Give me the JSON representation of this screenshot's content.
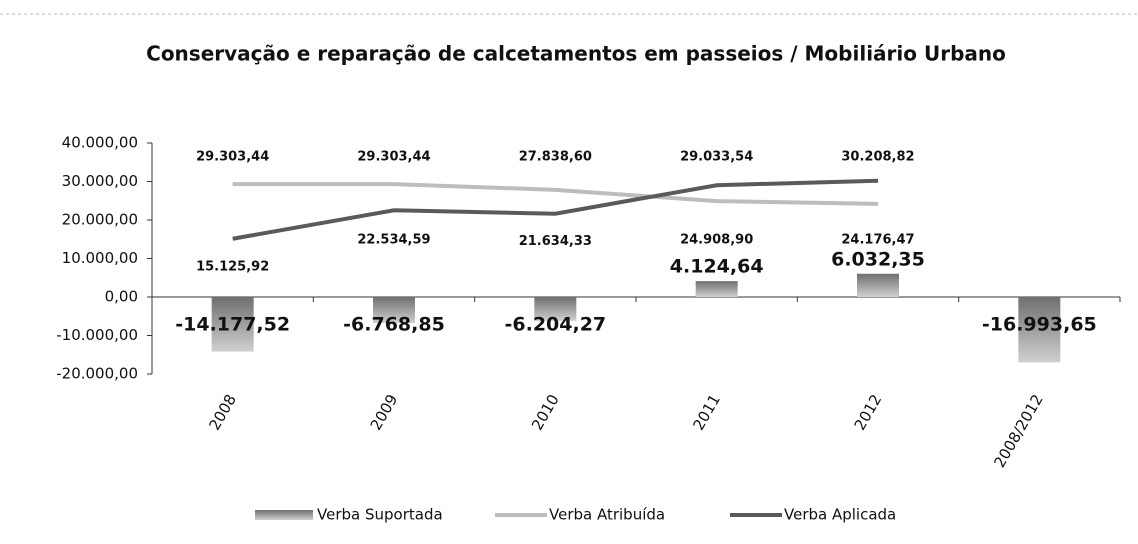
{
  "chart_data": {
    "type": "bar",
    "title": "Conservação e reparação de calcetamentos em passeios / Mobiliário Urbano",
    "categories": [
      "2008",
      "2009",
      "2010",
      "2011",
      "2012",
      "2008/2012"
    ],
    "series": [
      {
        "name": "Verba Suportada",
        "type": "bar",
        "color": "#9a9a9a",
        "values": [
          -14177.52,
          -6768.85,
          -6204.27,
          4124.64,
          6032.35,
          -16993.65
        ],
        "value_labels": [
          "-14.177,52",
          "-6.768,85",
          "-6.204,27",
          "4.124,64",
          "6.032,35",
          "-16.993,65"
        ]
      },
      {
        "name": "Verba Atribuída",
        "type": "line",
        "color": "#bdbdbd",
        "values": [
          29303.44,
          29303.44,
          27838.6,
          24908.9,
          24176.47,
          null
        ],
        "value_labels": [
          "29.303,44",
          "29.303,44",
          "27.838,60",
          "24.908,90",
          "24.176,47",
          null
        ]
      },
      {
        "name": "Verba Aplicada",
        "type": "line",
        "color": "#5a5a5a",
        "values": [
          15125.92,
          22534.59,
          21634.33,
          29033.54,
          30208.82,
          null
        ],
        "value_labels": [
          "15.125,92",
          "22.534,59",
          "21.634,33",
          "29.033,54",
          "30.208,82",
          null
        ]
      }
    ],
    "ylim": [
      -20000,
      40000
    ],
    "yticks": [
      {
        "value": -20000,
        "label": "-20.000,00"
      },
      {
        "value": -10000,
        "label": "-10.000,00"
      },
      {
        "value": 0,
        "label": "0,00"
      },
      {
        "value": 10000,
        "label": "10.000,00"
      },
      {
        "value": 20000,
        "label": "20.000,00"
      },
      {
        "value": 30000,
        "label": "30.000,00"
      },
      {
        "value": 40000,
        "label": "40.000,00"
      }
    ],
    "legend": "bottom"
  }
}
